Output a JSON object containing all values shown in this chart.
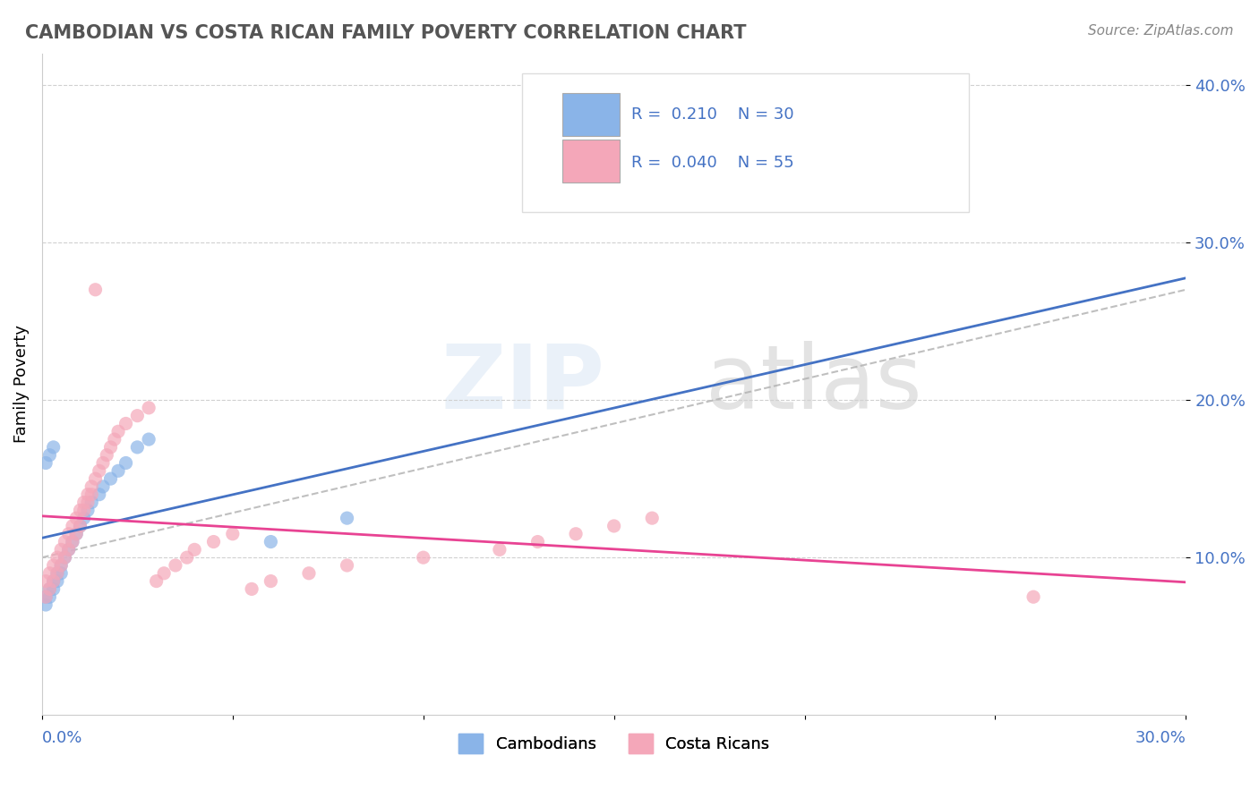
{
  "title": "CAMBODIAN VS COSTA RICAN FAMILY POVERTY CORRELATION CHART",
  "source": "Source: ZipAtlas.com",
  "ylabel": "Family Poverty",
  "xlim": [
    0,
    0.3
  ],
  "ylim": [
    0,
    0.42
  ],
  "color_cambodian": "#8ab4e8",
  "color_costa_rican": "#f4a7b9",
  "color_trendline1": "#4472c4",
  "color_trendline2": "#e84393",
  "color_dashed": "#b0b0b0",
  "cambodian_x": [
    0.001,
    0.002,
    0.003,
    0.004,
    0.005,
    0.006,
    0.007,
    0.008,
    0.009,
    0.01,
    0.011,
    0.012,
    0.013,
    0.015,
    0.016,
    0.018,
    0.02,
    0.022,
    0.025,
    0.028,
    0.001,
    0.002,
    0.003,
    0.004,
    0.005,
    0.06,
    0.08,
    0.001,
    0.002,
    0.003
  ],
  "cambodian_y": [
    0.075,
    0.08,
    0.085,
    0.09,
    0.095,
    0.1,
    0.105,
    0.11,
    0.115,
    0.12,
    0.125,
    0.13,
    0.135,
    0.14,
    0.145,
    0.15,
    0.155,
    0.16,
    0.17,
    0.175,
    0.07,
    0.075,
    0.08,
    0.085,
    0.09,
    0.11,
    0.125,
    0.16,
    0.165,
    0.17
  ],
  "costa_rican_x": [
    0.001,
    0.002,
    0.003,
    0.004,
    0.005,
    0.006,
    0.007,
    0.008,
    0.009,
    0.01,
    0.011,
    0.012,
    0.013,
    0.014,
    0.015,
    0.016,
    0.017,
    0.018,
    0.019,
    0.02,
    0.022,
    0.025,
    0.028,
    0.03,
    0.032,
    0.035,
    0.038,
    0.04,
    0.045,
    0.05,
    0.055,
    0.06,
    0.07,
    0.08,
    0.1,
    0.12,
    0.13,
    0.14,
    0.15,
    0.16,
    0.001,
    0.002,
    0.003,
    0.004,
    0.005,
    0.006,
    0.007,
    0.008,
    0.009,
    0.01,
    0.26,
    0.011,
    0.012,
    0.013,
    0.014
  ],
  "costa_rican_y": [
    0.085,
    0.09,
    0.095,
    0.1,
    0.105,
    0.11,
    0.115,
    0.12,
    0.125,
    0.13,
    0.135,
    0.14,
    0.145,
    0.15,
    0.155,
    0.16,
    0.165,
    0.17,
    0.175,
    0.18,
    0.185,
    0.19,
    0.195,
    0.085,
    0.09,
    0.095,
    0.1,
    0.105,
    0.11,
    0.115,
    0.08,
    0.085,
    0.09,
    0.095,
    0.1,
    0.105,
    0.11,
    0.115,
    0.12,
    0.125,
    0.075,
    0.08,
    0.085,
    0.09,
    0.095,
    0.1,
    0.105,
    0.11,
    0.115,
    0.12,
    0.075,
    0.13,
    0.135,
    0.14,
    0.27
  ]
}
